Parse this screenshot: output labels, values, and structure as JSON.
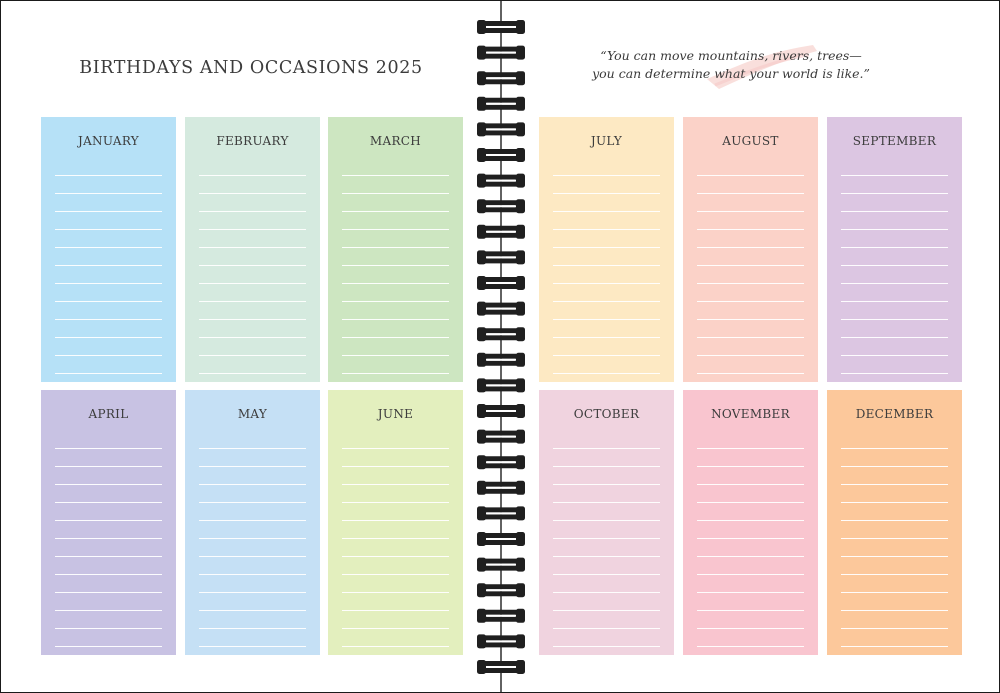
{
  "page": {
    "title": "BIRTHDAYS AND OCCASIONS 2025",
    "quote": {
      "line1": "“You can move mountains, rivers, trees—",
      "line2": "you can determine what your world is like.”"
    }
  },
  "months": [
    {
      "name": "JANUARY",
      "color": "#b6e1f7"
    },
    {
      "name": "FEBRUARY",
      "color": "#d5eadf"
    },
    {
      "name": "MARCH",
      "color": "#cde6c1"
    },
    {
      "name": "APRIL",
      "color": "#c8c2e3"
    },
    {
      "name": "MAY",
      "color": "#c5e0f5"
    },
    {
      "name": "JUNE",
      "color": "#e3efbe"
    },
    {
      "name": "JULY",
      "color": "#fde9c3"
    },
    {
      "name": "AUGUST",
      "color": "#fbd2c8"
    },
    {
      "name": "SEPTEMBER",
      "color": "#dcc6e2"
    },
    {
      "name": "OCTOBER",
      "color": "#f0d3df"
    },
    {
      "name": "NOVEMBER",
      "color": "#f9c5cf"
    },
    {
      "name": "DECEMBER",
      "color": "#fcc89b"
    }
  ],
  "colors": {
    "text": "#3c3c3c",
    "spiral": "#1f1f1f",
    "quote_accent": "#f4c4c0"
  },
  "icons": {
    "binding": "spiral-binding-icon",
    "quote_accent": "brush-stroke-icon"
  }
}
